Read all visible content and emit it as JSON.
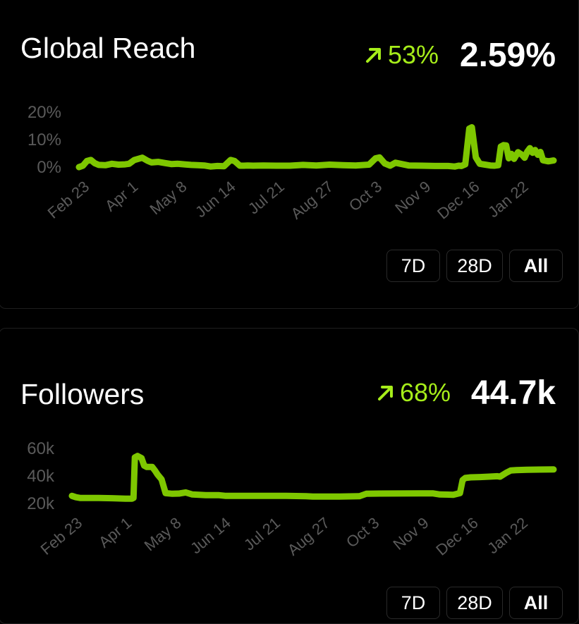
{
  "reach": {
    "title": "Global Reach",
    "change": "53%",
    "value": "2.59%",
    "ranges": [
      "7D",
      "28D",
      "All"
    ],
    "active_range": "All"
  },
  "followers": {
    "title": "Followers",
    "change": "68%",
    "value": "44.7k",
    "ranges": [
      "7D",
      "28D",
      "All"
    ],
    "active_range": "All"
  },
  "colors": {
    "accent": "#a6ed1a",
    "line": "#7ec700",
    "tick": "#5a5a5a"
  },
  "icons": {
    "trend": "arrow-up-right-icon"
  },
  "chart_data": [
    {
      "type": "line",
      "ylim": [
        0,
        20
      ],
      "ytick_labels": [
        "20%",
        "10%",
        "0%"
      ],
      "ytick_values": [
        20,
        10,
        0
      ],
      "xtick_labels": [
        "Feb 23",
        "Apr 1",
        "May 8",
        "Jun 14",
        "Jul 21",
        "Aug 27",
        "Oct 3",
        "Nov 9",
        "Dec 16",
        "Jan 22"
      ],
      "xtick_pos": [
        0,
        37,
        74,
        111,
        148,
        185,
        222,
        259,
        296,
        333
      ],
      "x": [
        0,
        3,
        6,
        9,
        12,
        15,
        20,
        25,
        30,
        35,
        38,
        42,
        45,
        48,
        52,
        55,
        60,
        65,
        70,
        75,
        80,
        85,
        90,
        95,
        100,
        105,
        110,
        115,
        118,
        122,
        125,
        128,
        132,
        140,
        150,
        160,
        170,
        180,
        190,
        200,
        210,
        220,
        225,
        228,
        232,
        236,
        240,
        250,
        260,
        270,
        280,
        285,
        288,
        290,
        293,
        296,
        298,
        301,
        304,
        308,
        312,
        315,
        318,
        320,
        322,
        324,
        326,
        328,
        330,
        333,
        336,
        338,
        340,
        342,
        344,
        346,
        348,
        350,
        352,
        356,
        360
      ],
      "y": [
        0,
        0.5,
        2.2,
        2.6,
        1.4,
        0.8,
        0.7,
        1.2,
        0.9,
        1.0,
        1.2,
        2.6,
        3.0,
        3.4,
        2.3,
        1.7,
        1.9,
        1.5,
        1.1,
        1.2,
        1.0,
        0.8,
        0.7,
        0.6,
        0.2,
        0.4,
        0.3,
        2.6,
        2.2,
        0.5,
        0.5,
        0.6,
        0.5,
        0.6,
        0.5,
        0.5,
        0.8,
        0.6,
        0.9,
        0.7,
        0.6,
        0.9,
        3.2,
        3.5,
        1.3,
        0.5,
        1.6,
        0.6,
        0.5,
        0.4,
        0.4,
        0.2,
        0.5,
        0.4,
        1.0,
        14.0,
        14.5,
        3.5,
        1.2,
        0.9,
        0.6,
        0.5,
        0.7,
        7.5,
        8.0,
        7.9,
        3.2,
        4.8,
        3.0,
        5.4,
        4.5,
        3.4,
        5.6,
        6.9,
        5.2,
        6.2,
        4.5,
        5.5,
        2.5,
        2.1,
        2.4
      ]
    },
    {
      "type": "line",
      "ylim": [
        20000,
        60000
      ],
      "ytick_labels": [
        "60k",
        "40k",
        "20k"
      ],
      "ytick_values": [
        60000,
        40000,
        20000
      ],
      "xtick_labels": [
        "Feb 23",
        "Apr 1",
        "May 8",
        "Jun 14",
        "Jul 21",
        "Aug 27",
        "Oct 3",
        "Nov 9",
        "Dec 16",
        "Jan 22"
      ],
      "xtick_pos": [
        0,
        37,
        74,
        111,
        148,
        185,
        222,
        259,
        296,
        333
      ],
      "x": [
        0,
        3,
        6,
        10,
        20,
        30,
        40,
        45,
        46,
        47,
        49,
        52,
        54,
        56,
        60,
        62,
        64,
        67,
        70,
        75,
        80,
        85,
        90,
        100,
        110,
        115,
        120,
        140,
        160,
        175,
        180,
        185,
        200,
        215,
        220,
        230,
        260,
        270,
        275,
        285,
        290,
        292,
        294,
        298,
        305,
        312,
        318,
        320,
        325,
        328,
        332,
        340,
        360
      ],
      "y": [
        25500,
        24500,
        24000,
        24000,
        24000,
        23800,
        23500,
        23500,
        24000,
        53500,
        54500,
        53000,
        47500,
        46500,
        46500,
        44000,
        41000,
        37500,
        27500,
        27000,
        27200,
        28000,
        26500,
        26000,
        26000,
        25500,
        25500,
        25500,
        25500,
        25300,
        25000,
        25000,
        25000,
        25300,
        27000,
        27200,
        27300,
        27300,
        26500,
        26300,
        27500,
        37000,
        38500,
        39000,
        39200,
        39500,
        39800,
        39500,
        42500,
        44000,
        44200,
        44500,
        44700
      ]
    }
  ]
}
